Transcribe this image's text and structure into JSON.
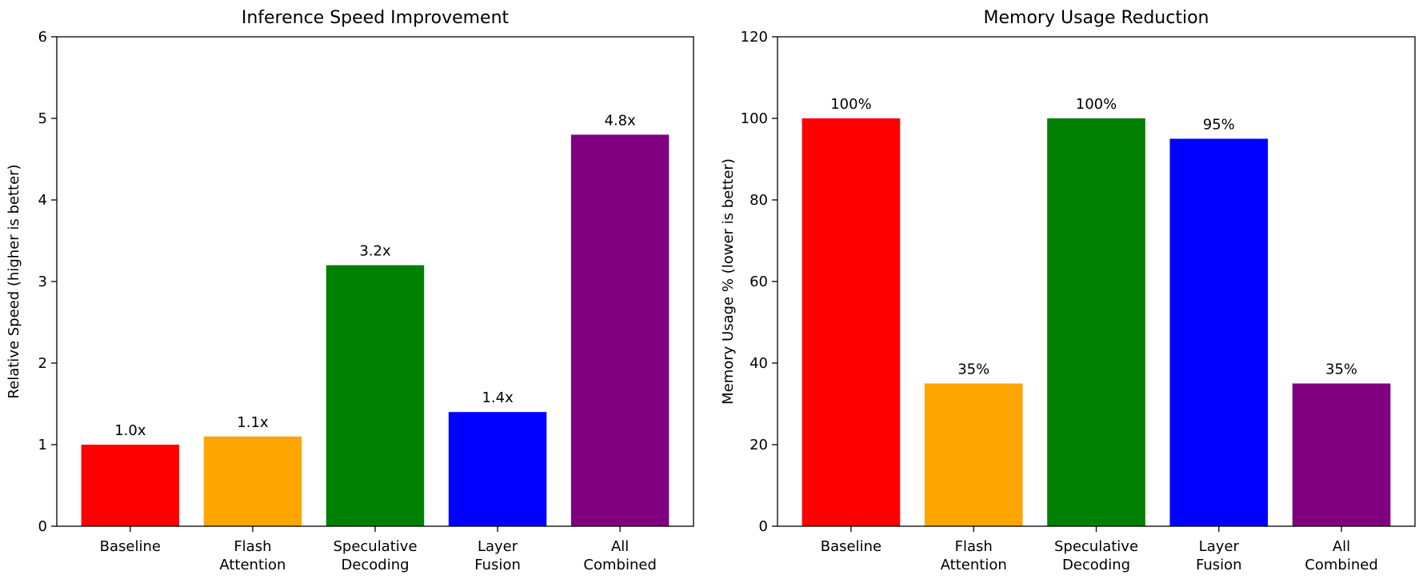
{
  "chart_data": [
    {
      "type": "bar",
      "title": "Inference Speed Improvement",
      "xlabel": "",
      "ylabel": "Relative Speed (higher is better)",
      "categories": [
        "Baseline",
        "Flash Attention",
        "Speculative Decoding",
        "Layer Fusion",
        "All Combined"
      ],
      "category_lines": [
        [
          "Baseline"
        ],
        [
          "Flash",
          "Attention"
        ],
        [
          "Speculative",
          "Decoding"
        ],
        [
          "Layer",
          "Fusion"
        ],
        [
          "All",
          "Combined"
        ]
      ],
      "values": [
        1.0,
        1.1,
        3.2,
        1.4,
        4.8
      ],
      "value_labels": [
        "1.0x",
        "1.1x",
        "3.2x",
        "1.4x",
        "4.8x"
      ],
      "colors": [
        "#ff0000",
        "#ffa500",
        "#008000",
        "#0000ff",
        "#800080"
      ],
      "ylim": [
        0,
        6
      ],
      "yticks": [
        0,
        1,
        2,
        3,
        4,
        5,
        6
      ],
      "ytick_labels": [
        "0",
        "1",
        "2",
        "3",
        "4",
        "5",
        "6"
      ],
      "grid": false,
      "legend": "none"
    },
    {
      "type": "bar",
      "title": "Memory Usage Reduction",
      "xlabel": "",
      "ylabel": "Memory Usage % (lower is better)",
      "categories": [
        "Baseline",
        "Flash Attention",
        "Speculative Decoding",
        "Layer Fusion",
        "All Combined"
      ],
      "category_lines": [
        [
          "Baseline"
        ],
        [
          "Flash",
          "Attention"
        ],
        [
          "Speculative",
          "Decoding"
        ],
        [
          "Layer",
          "Fusion"
        ],
        [
          "All",
          "Combined"
        ]
      ],
      "values": [
        100,
        35,
        100,
        95,
        35
      ],
      "value_labels": [
        "100%",
        "35%",
        "100%",
        "95%",
        "35%"
      ],
      "colors": [
        "#ff0000",
        "#ffa500",
        "#008000",
        "#0000ff",
        "#800080"
      ],
      "ylim": [
        0,
        120
      ],
      "yticks": [
        0,
        20,
        40,
        60,
        80,
        100,
        120
      ],
      "ytick_labels": [
        "0",
        "20",
        "40",
        "60",
        "80",
        "100",
        "120"
      ],
      "grid": false,
      "legend": "none"
    }
  ]
}
